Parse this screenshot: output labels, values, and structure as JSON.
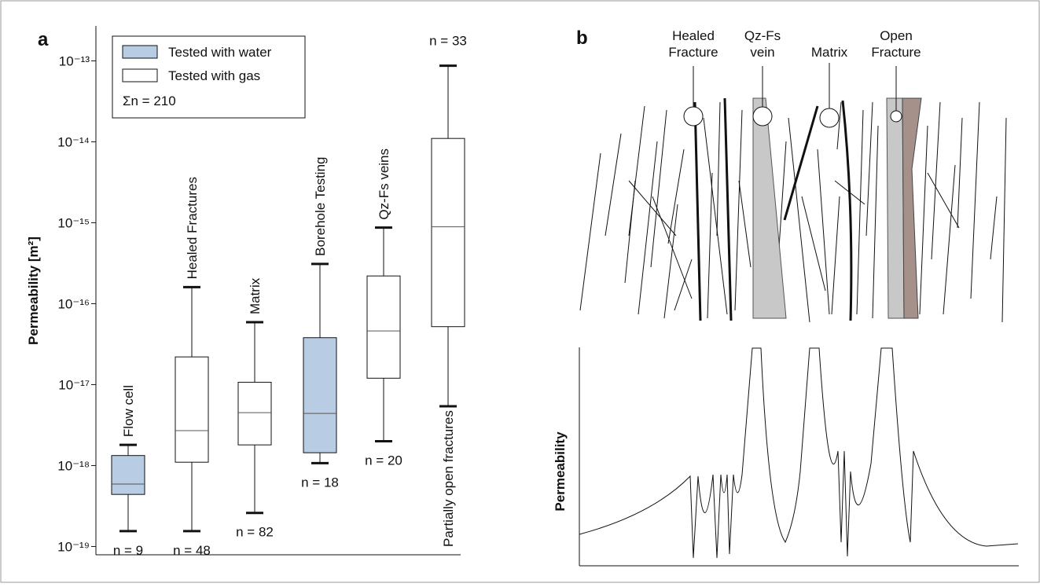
{
  "chart_data": {
    "type": "box",
    "panel_label": "a",
    "ylabel": "Permeability [m²]",
    "log_scale": true,
    "ylim": [
      7.9e-20,
      2.7e-13
    ],
    "yticks": [
      {
        "value": 1e-19,
        "label": "10⁻¹⁹"
      },
      {
        "value": 1e-18,
        "label": "10⁻¹⁸"
      },
      {
        "value": 1e-17,
        "label": "10⁻¹⁷"
      },
      {
        "value": 1e-16,
        "label": "10⁻¹⁶"
      },
      {
        "value": 1e-15,
        "label": "10⁻¹⁵"
      },
      {
        "value": 1e-14,
        "label": "10⁻¹⁴"
      },
      {
        "value": 1e-13,
        "label": "10⁻¹³"
      }
    ],
    "series": [
      {
        "name": "Tested with water",
        "color": "#b8cce4"
      },
      {
        "name": "Tested with gas",
        "color": "#ffffff"
      }
    ],
    "legend_note": "Σn = 210",
    "boxes": [
      {
        "category": "Flow cell",
        "n_label": "n = 9",
        "series": 0,
        "min": 1.55e-19,
        "q1": 4.4e-19,
        "median": 5.9e-19,
        "q3": 1.33e-18,
        "max": 1.8e-18
      },
      {
        "category": "Healed Fractures",
        "n_label": "n = 48",
        "series": 1,
        "min": 1.55e-19,
        "q1": 1.1e-18,
        "median": 2.7e-18,
        "q3": 2.2e-17,
        "max": 1.6e-16
      },
      {
        "category": "Matrix",
        "n_label": "n = 82",
        "series": 1,
        "min": 2.6e-19,
        "q1": 1.8e-18,
        "median": 4.5e-18,
        "q3": 1.07e-17,
        "max": 5.9e-17
      },
      {
        "category": "Borehole Testing",
        "n_label": "n = 18",
        "series": 0,
        "min": 1.07e-18,
        "q1": 1.44e-18,
        "median": 4.4e-18,
        "q3": 3.8e-17,
        "max": 3.1e-16
      },
      {
        "category": "Qz-Fs veins",
        "n_label": "n = 20",
        "series": 1,
        "min": 2e-18,
        "q1": 1.2e-17,
        "median": 4.6e-17,
        "q3": 2.2e-16,
        "max": 8.7e-16
      },
      {
        "category": "Partially open fractures",
        "n_label": "n = 33",
        "series": 1,
        "min": 5.4e-18,
        "q1": 5.2e-17,
        "median": 8.9e-16,
        "q3": 1.1e-14,
        "max": 8.7e-14
      }
    ]
  },
  "diagram": {
    "panel_label": "b",
    "ylabel": "Permeability",
    "labels": [
      {
        "lines": [
          "Healed",
          "Fracture"
        ]
      },
      {
        "lines": [
          "Qz-Fs",
          "vein"
        ]
      },
      {
        "lines": [
          "Matrix"
        ]
      },
      {
        "lines": [
          "Open",
          "Fracture"
        ]
      }
    ]
  }
}
